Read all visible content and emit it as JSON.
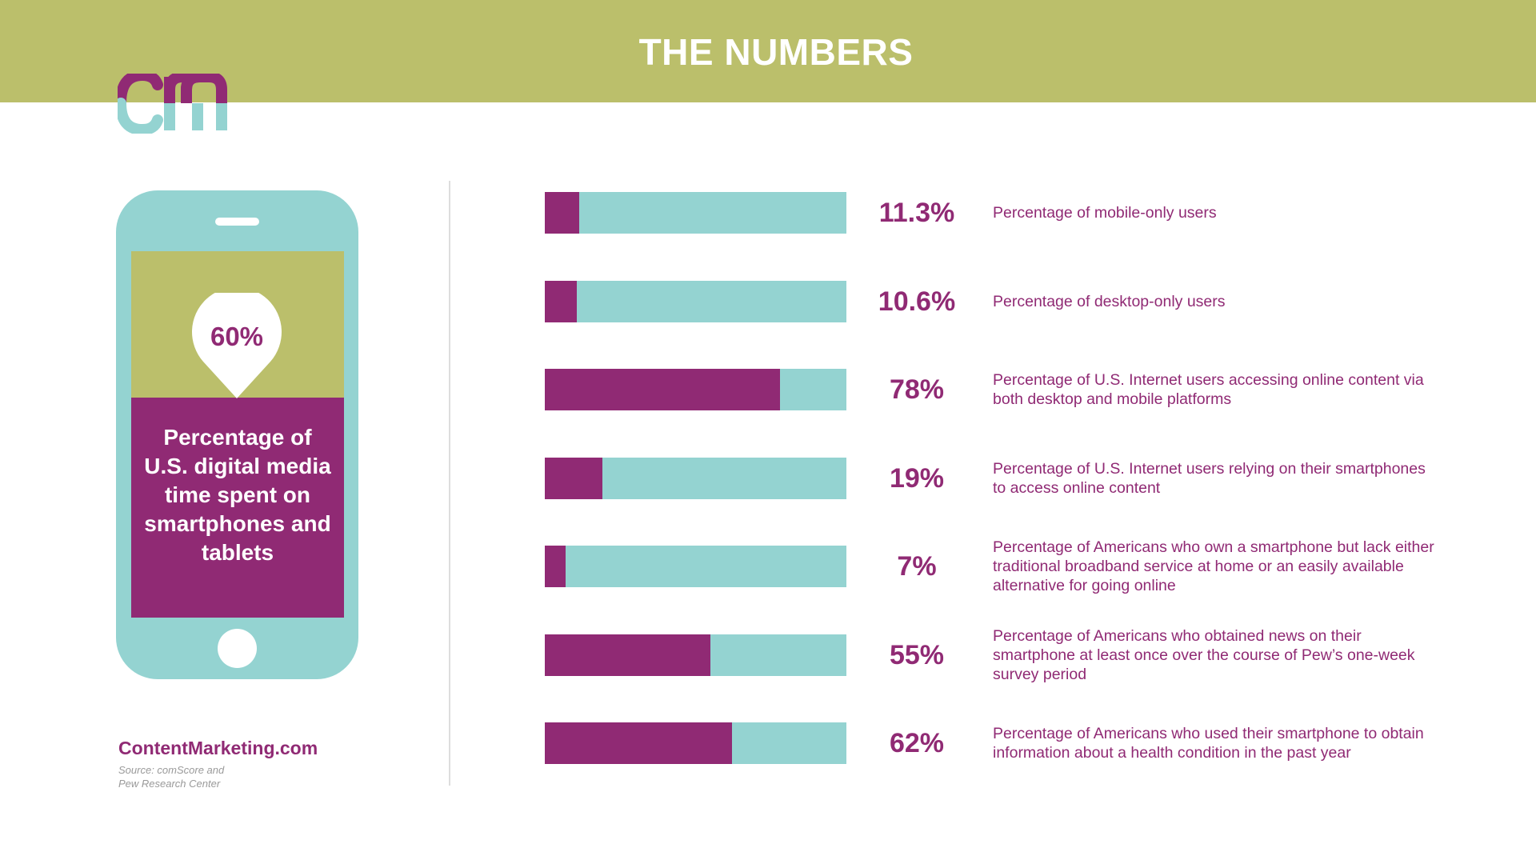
{
  "header": {
    "title": "THE NUMBERS"
  },
  "logo": {
    "text": "cm"
  },
  "phone": {
    "value": "60%",
    "description": "Percentage of U.S. digital media time spent on smartphones and tablets"
  },
  "footer": {
    "brand": "ContentMarketing.com",
    "source_line1": "Source: comScore and",
    "source_line2": "Pew Research Center"
  },
  "colors": {
    "header": "#bbbf6b",
    "primary": "#902a74",
    "secondary": "#94d3d1",
    "text_muted": "#9a9a9a"
  },
  "chart_data": {
    "type": "bar",
    "orientation": "horizontal",
    "unit": "%",
    "range": [
      0,
      100
    ],
    "series": [
      {
        "label": "11.3%",
        "value": 11.3,
        "description": "Percentage of mobile-only users"
      },
      {
        "label": "10.6%",
        "value": 10.6,
        "description": "Percentage of desktop-only users"
      },
      {
        "label": "78%",
        "value": 78,
        "description": "Percentage of U.S. Internet users accessing online content via both desktop and mobile platforms"
      },
      {
        "label": "19%",
        "value": 19,
        "description": "Percentage of U.S. Internet users relying on their smartphones to access online content"
      },
      {
        "label": "7%",
        "value": 7,
        "description": "Percentage of Americans who own a smartphone but lack either traditional broadband service at home or an easily available alternative for going online"
      },
      {
        "label": "55%",
        "value": 55,
        "description": "Percentage of Americans who obtained news on their smartphone at least once over the course of Pew’s one-week survey period"
      },
      {
        "label": "62%",
        "value": 62,
        "description": "Percentage of Americans who used their smartphone to obtain information about a health condition in the past year"
      }
    ]
  }
}
